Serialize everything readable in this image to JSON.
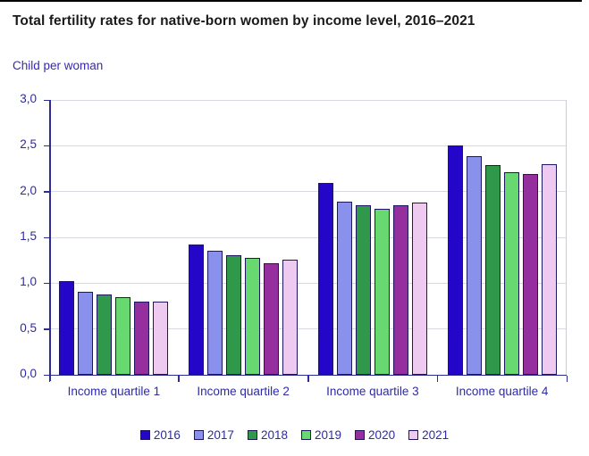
{
  "header": {
    "title": "Total fertility rates for native-born women by income level, 2016–2021",
    "subtitle": "Child per woman"
  },
  "chart_data": {
    "type": "bar",
    "title": "Total fertility rates for native-born women by income level, 2016–2021",
    "ylabel": "Child per woman",
    "xlabel": "",
    "categories": [
      "Income quartile 1",
      "Income quartile 2",
      "Income quartile 3",
      "Income quartile 4"
    ],
    "series": [
      {
        "name": "2016",
        "color": "#2306c8",
        "values": [
          1.02,
          1.42,
          2.09,
          2.5
        ]
      },
      {
        "name": "2017",
        "color": "#8991ec",
        "values": [
          0.91,
          1.35,
          1.89,
          2.39
        ]
      },
      {
        "name": "2018",
        "color": "#2f984a",
        "values": [
          0.88,
          1.31,
          1.85,
          2.29
        ]
      },
      {
        "name": "2019",
        "color": "#68d971",
        "values": [
          0.85,
          1.28,
          1.81,
          2.21
        ]
      },
      {
        "name": "2020",
        "color": "#952f9d",
        "values": [
          0.8,
          1.22,
          1.85,
          2.19
        ]
      },
      {
        "name": "2021",
        "color": "#eec9f0",
        "values": [
          0.8,
          1.26,
          1.88,
          2.3
        ]
      }
    ],
    "ylim": [
      0,
      3
    ],
    "ytick_step": 0.5,
    "ytick_labels": [
      "0,0",
      "0,5",
      "1,0",
      "1,5",
      "2,0",
      "2,5",
      "3,0"
    ],
    "grid": true,
    "legend_position": "bottom",
    "colors": {
      "bar_border": "#1d1762",
      "axis": "#2b2b96",
      "labels": "#2e2ba2",
      "gridline": "#d9d9e3",
      "title": "#1a1a1a",
      "subtitle": "#3626bc"
    }
  }
}
